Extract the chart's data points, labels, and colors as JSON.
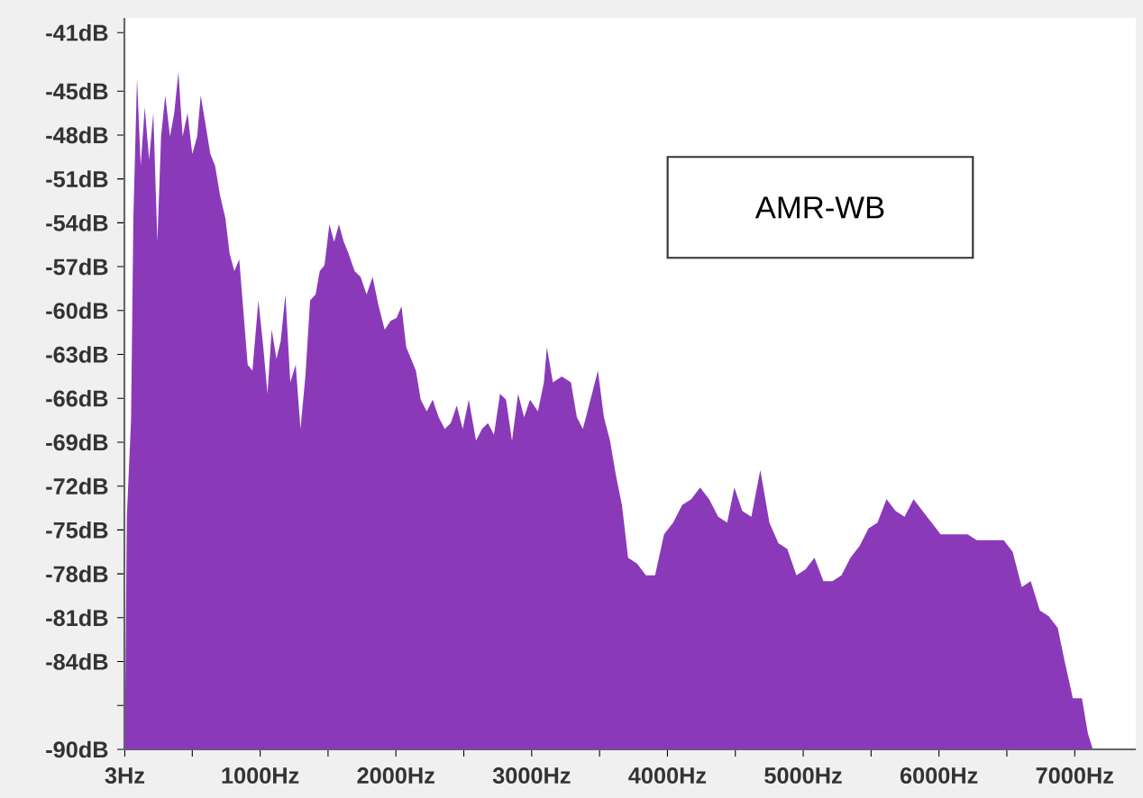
{
  "chart_data": {
    "type": "area",
    "annotations": [
      "AMR-WB"
    ],
    "xlim": [
      0,
      7450
    ],
    "ylim": [
      -90,
      -40
    ],
    "xticks": [
      {
        "value": 3,
        "label": "3Hz"
      },
      {
        "value": 500,
        "label": null
      },
      {
        "value": 1000,
        "label": "1000Hz"
      },
      {
        "value": 1500,
        "label": null
      },
      {
        "value": 2000,
        "label": "2000Hz"
      },
      {
        "value": 2500,
        "label": null
      },
      {
        "value": 3000,
        "label": "3000Hz"
      },
      {
        "value": 3500,
        "label": null
      },
      {
        "value": 4000,
        "label": "4000Hz"
      },
      {
        "value": 4500,
        "label": null
      },
      {
        "value": 5000,
        "label": "5000Hz"
      },
      {
        "value": 5500,
        "label": null
      },
      {
        "value": 6000,
        "label": "6000Hz"
      },
      {
        "value": 6500,
        "label": null
      },
      {
        "value": 7000,
        "label": "7000Hz"
      }
    ],
    "yticks": [
      {
        "value": -41,
        "label": "-41dB"
      },
      {
        "value": -45,
        "label": "-45dB"
      },
      {
        "value": -48,
        "label": "-48dB"
      },
      {
        "value": -51,
        "label": "-51dB"
      },
      {
        "value": -54,
        "label": "-54dB"
      },
      {
        "value": -57,
        "label": "-57dB"
      },
      {
        "value": -60,
        "label": "-60dB"
      },
      {
        "value": -63,
        "label": "-63dB"
      },
      {
        "value": -66,
        "label": "-66dB"
      },
      {
        "value": -69,
        "label": "-69dB"
      },
      {
        "value": -72,
        "label": "-72dB"
      },
      {
        "value": -75,
        "label": "-75dB"
      },
      {
        "value": -78,
        "label": "-78dB"
      },
      {
        "value": -81,
        "label": "-81dB"
      },
      {
        "value": -84,
        "label": "-84dB"
      },
      {
        "value": -87,
        "label": null
      },
      {
        "value": -90,
        "label": "-90dB"
      }
    ],
    "series": [
      {
        "color": "#8a3ab9",
        "x": [
          3,
          18,
          49,
          66,
          93,
          120,
          150,
          182,
          213,
          243,
          270,
          301,
          336,
          367,
          398,
          429,
          465,
          500,
          536,
          562,
          598,
          633,
          668,
          704,
          744,
          775,
          810,
          846,
          877,
          908,
          943,
          987,
          1023,
          1054,
          1085,
          1120,
          1151,
          1186,
          1222,
          1262,
          1297,
          1333,
          1368,
          1408,
          1439,
          1474,
          1510,
          1545,
          1580,
          1616,
          1651,
          1696,
          1740,
          1784,
          1828,
          1873,
          1917,
          1961,
          2005,
          2041,
          2076,
          2112,
          2147,
          2183,
          2227,
          2271,
          2315,
          2360,
          2404,
          2448,
          2492,
          2537,
          2590,
          2634,
          2678,
          2722,
          2767,
          2811,
          2855,
          2900,
          2944,
          2988,
          3046,
          3090,
          3112,
          3156,
          3222,
          3289,
          3333,
          3377,
          3422,
          3488,
          3532,
          3577,
          3621,
          3665,
          3710,
          3776,
          3842,
          3909,
          3975,
          4042,
          4108,
          4175,
          4241,
          4307,
          4374,
          4440,
          4493,
          4551,
          4618,
          4684,
          4751,
          4817,
          4883,
          4950,
          5016,
          5083,
          5149,
          5215,
          5282,
          5348,
          5415,
          5481,
          5547,
          5614,
          5680,
          5747,
          5813,
          5879,
          5946,
          6012,
          6079,
          6145,
          6211,
          6278,
          6344,
          6411,
          6477,
          6543,
          6610,
          6676,
          6743,
          6809,
          6875,
          6929,
          6986,
          7053,
          7097,
          7133
        ],
        "values": [
          -90,
          -74.1,
          -67.5,
          -53.7,
          -44.1,
          -50.1,
          -46.1,
          -49.7,
          -46.5,
          -55.3,
          -48.1,
          -45.3,
          -48.1,
          -46.5,
          -43.7,
          -48.1,
          -46.5,
          -49.3,
          -48.1,
          -45.3,
          -47.3,
          -49.3,
          -50.1,
          -52.1,
          -53.7,
          -56.1,
          -57.3,
          -56.5,
          -60.1,
          -63.7,
          -64.1,
          -59.3,
          -62.5,
          -65.7,
          -61.3,
          -63.3,
          -62.1,
          -58.9,
          -64.9,
          -63.7,
          -68.1,
          -64.5,
          -59.3,
          -58.9,
          -57.3,
          -56.9,
          -54.1,
          -55.3,
          -54.1,
          -55.3,
          -56.1,
          -57.3,
          -57.7,
          -58.9,
          -57.7,
          -59.7,
          -61.3,
          -60.7,
          -60.5,
          -59.7,
          -62.5,
          -63.3,
          -64.1,
          -66.1,
          -66.9,
          -66.1,
          -67.3,
          -68.1,
          -67.7,
          -66.5,
          -68.1,
          -66.1,
          -68.9,
          -68.1,
          -67.7,
          -68.5,
          -65.7,
          -66.1,
          -68.9,
          -65.7,
          -67.3,
          -66.1,
          -66.9,
          -64.9,
          -62.5,
          -64.9,
          -64.5,
          -64.9,
          -67.3,
          -68.1,
          -66.5,
          -64.1,
          -67.3,
          -68.9,
          -71.3,
          -73.3,
          -76.9,
          -77.3,
          -78.1,
          -78.1,
          -75.3,
          -74.5,
          -73.3,
          -72.9,
          -72.1,
          -72.9,
          -74.1,
          -74.5,
          -72.1,
          -73.7,
          -74.1,
          -70.9,
          -74.5,
          -75.9,
          -76.3,
          -78.1,
          -77.7,
          -76.9,
          -78.5,
          -78.5,
          -78.1,
          -76.9,
          -76.1,
          -74.9,
          -74.5,
          -72.9,
          -73.7,
          -74.1,
          -72.9,
          -73.7,
          -74.5,
          -75.3,
          -75.3,
          -75.3,
          -75.3,
          -75.7,
          -75.7,
          -75.7,
          -75.7,
          -76.5,
          -78.9,
          -78.5,
          -80.5,
          -80.9,
          -81.7,
          -84.1,
          -86.5,
          -86.5,
          -88.9,
          -90
        ]
      }
    ]
  }
}
